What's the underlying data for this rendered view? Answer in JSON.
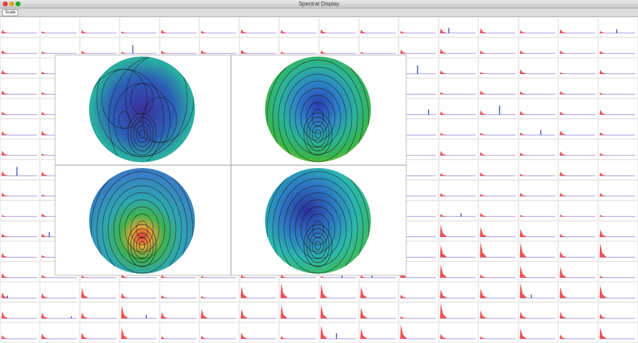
{
  "window": {
    "title": "Spectral Display"
  },
  "toolbar": {
    "button": "Scale"
  }
}
